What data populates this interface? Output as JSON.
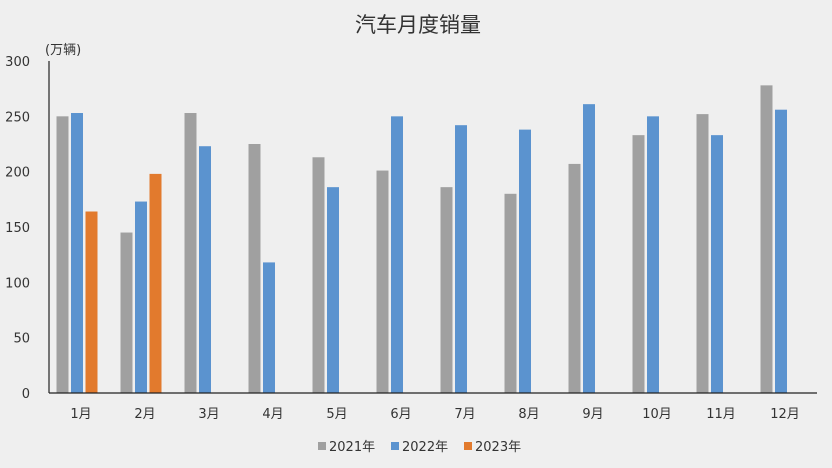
{
  "chart_data": {
    "type": "bar",
    "title": "汽车月度销量",
    "ylabel": "(万辆)",
    "xlabel": "",
    "ylim": [
      0,
      300
    ],
    "yticks": [
      0,
      50,
      100,
      150,
      200,
      250,
      300
    ],
    "grid": false,
    "legend": "bottom",
    "categories": [
      "1月",
      "2月",
      "3月",
      "4月",
      "5月",
      "6月",
      "7月",
      "8月",
      "9月",
      "10月",
      "11月",
      "12月"
    ],
    "series": [
      {
        "name": "2021年",
        "color": "#a0a0a0",
        "values": [
          250,
          145,
          253,
          225,
          213,
          201,
          186,
          180,
          207,
          233,
          252,
          278
        ]
      },
      {
        "name": "2022年",
        "color": "#5b93cf",
        "values": [
          253,
          173,
          223,
          118,
          186,
          250,
          242,
          238,
          261,
          250,
          233,
          256
        ]
      },
      {
        "name": "2023年",
        "color": "#e27a2d",
        "values": [
          164,
          198,
          null,
          null,
          null,
          null,
          null,
          null,
          null,
          null,
          null,
          null
        ]
      }
    ]
  }
}
